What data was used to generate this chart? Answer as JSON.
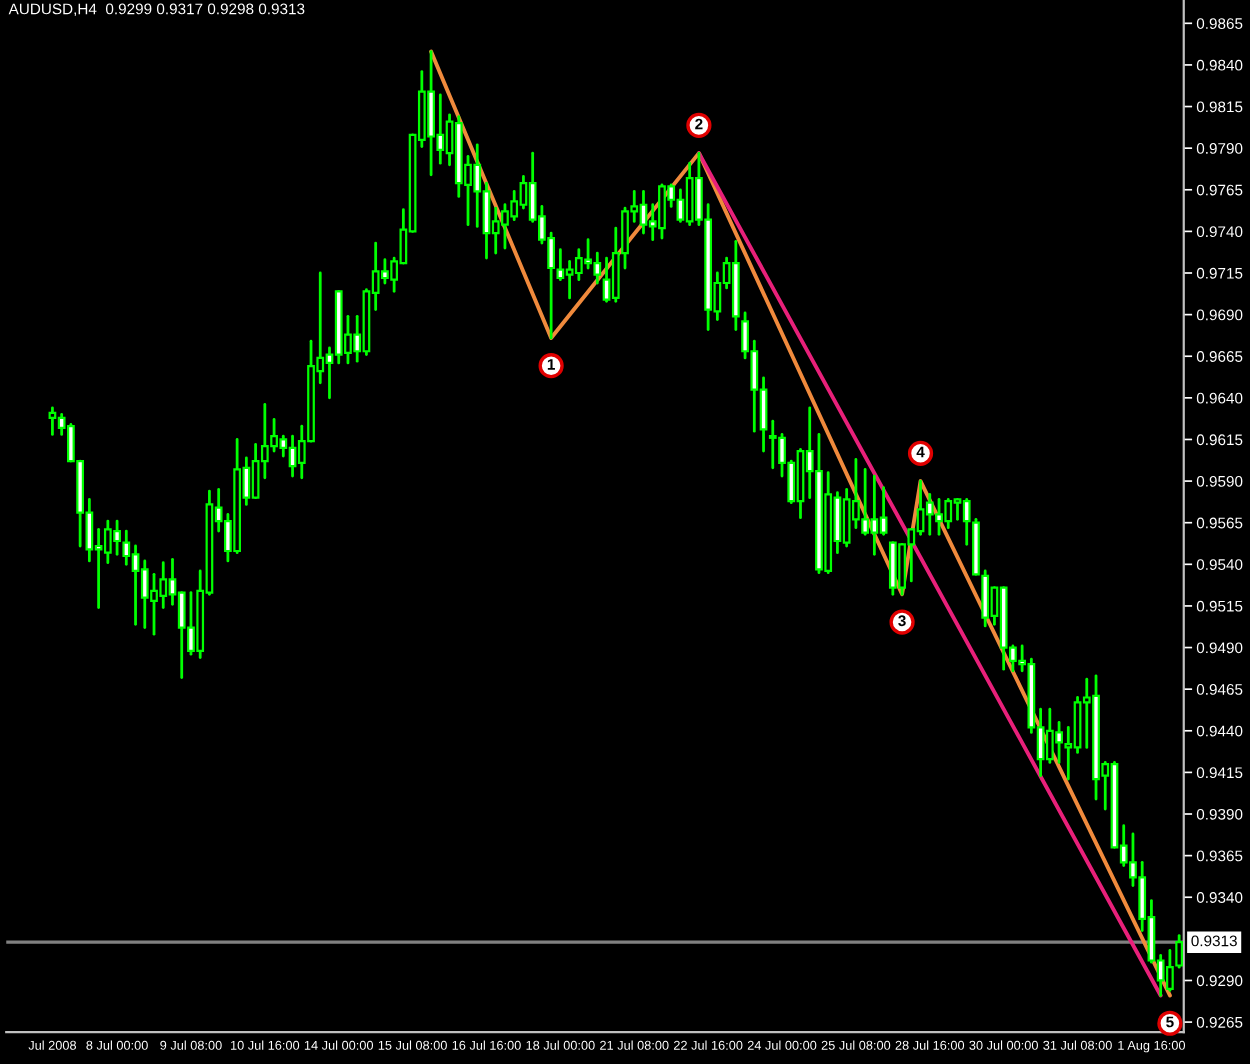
{
  "chart_data": {
    "type": "candlestick",
    "title": "AUDUSD,H4  0.9299 0.9317 0.9298 0.9313",
    "categories": [
      "Jul 2008",
      null,
      null,
      null,
      null,
      null,
      null,
      "8 Jul 00:00",
      null,
      null,
      null,
      null,
      null,
      null,
      null,
      "9 Jul 08:00",
      null,
      null,
      null,
      null,
      null,
      null,
      null,
      "10 Jul 16:00",
      null,
      null,
      null,
      null,
      null,
      null,
      null,
      "14 Jul 00:00",
      null,
      null,
      null,
      null,
      null,
      null,
      null,
      "15 Jul 08:00",
      null,
      null,
      null,
      null,
      null,
      null,
      null,
      "16 Jul 16:00",
      null,
      null,
      null,
      null,
      null,
      null,
      null,
      "18 Jul 00:00",
      null,
      null,
      null,
      null,
      null,
      null,
      null,
      "21 Jul 08:00",
      null,
      null,
      null,
      null,
      null,
      null,
      null,
      "22 Jul 16:00",
      null,
      null,
      null,
      null,
      null,
      null,
      null,
      "24 Jul 00:00",
      null,
      null,
      null,
      null,
      null,
      null,
      null,
      "25 Jul 08:00",
      null,
      null,
      null,
      null,
      null,
      null,
      null,
      "28 Jul 16:00",
      null,
      null,
      null,
      null,
      null,
      null,
      null,
      "30 Jul 00:00",
      null,
      null,
      null,
      null,
      null,
      null,
      null,
      "31 Jul 08:00",
      null,
      null,
      null,
      null,
      null,
      null,
      null,
      "1 Aug 16:00",
      null,
      null,
      null
    ],
    "color": "#00ff00",
    "ohlc": [
      [
        0.9628,
        0.9634,
        0.9618,
        0.9631
      ],
      [
        0.9628,
        0.963,
        0.9618,
        0.9622
      ],
      [
        0.9623,
        0.9624,
        0.9602,
        0.9602
      ],
      [
        0.9602,
        0.9602,
        0.9551,
        0.9571
      ],
      [
        0.9571,
        0.9579,
        0.9542,
        0.9549
      ],
      [
        0.9551,
        0.9561,
        0.9514,
        0.9549
      ],
      [
        0.9547,
        0.9566,
        0.9541,
        0.9561
      ],
      [
        0.956,
        0.9566,
        0.9546,
        0.9554
      ],
      [
        0.9553,
        0.956,
        0.954,
        0.9545
      ],
      [
        0.9546,
        0.9551,
        0.9504,
        0.9536
      ],
      [
        0.9537,
        0.9542,
        0.9502,
        0.952
      ],
      [
        0.9518,
        0.9534,
        0.9498,
        0.9524
      ],
      [
        0.9521,
        0.9541,
        0.9514,
        0.9531
      ],
      [
        0.9531,
        0.9543,
        0.9516,
        0.9522
      ],
      [
        0.9523,
        0.9523,
        0.9472,
        0.9502
      ],
      [
        0.9502,
        0.9523,
        0.9486,
        0.9488
      ],
      [
        0.9488,
        0.9536,
        0.9484,
        0.9524
      ],
      [
        0.9523,
        0.9584,
        0.9522,
        0.9576
      ],
      [
        0.9574,
        0.9585,
        0.956,
        0.9566
      ],
      [
        0.9566,
        0.957,
        0.9542,
        0.9548
      ],
      [
        0.9548,
        0.9615,
        0.9547,
        0.9597
      ],
      [
        0.9598,
        0.9604,
        0.9576,
        0.958
      ],
      [
        0.958,
        0.9612,
        0.958,
        0.9602
      ],
      [
        0.9602,
        0.9636,
        0.9592,
        0.9611
      ],
      [
        0.9611,
        0.9627,
        0.9608,
        0.9617
      ],
      [
        0.9615,
        0.9617,
        0.9605,
        0.961
      ],
      [
        0.961,
        0.9617,
        0.9593,
        0.9599
      ],
      [
        0.9601,
        0.9623,
        0.9592,
        0.9614
      ],
      [
        0.9614,
        0.9674,
        0.9614,
        0.9659
      ],
      [
        0.9656,
        0.9715,
        0.9649,
        0.9664
      ],
      [
        0.9666,
        0.967,
        0.964,
        0.9661
      ],
      [
        0.9704,
        0.9704,
        0.9661,
        0.9666
      ],
      [
        0.9667,
        0.9689,
        0.9661,
        0.9678
      ],
      [
        0.9678,
        0.9689,
        0.9662,
        0.9668
      ],
      [
        0.9668,
        0.9705,
        0.9666,
        0.9704
      ],
      [
        0.9703,
        0.9733,
        0.9693,
        0.9716
      ],
      [
        0.9716,
        0.9723,
        0.9709,
        0.9712
      ],
      [
        0.9711,
        0.9724,
        0.9704,
        0.9722
      ],
      [
        0.9721,
        0.9753,
        0.9721,
        0.9741
      ],
      [
        0.974,
        0.9798,
        0.974,
        0.9798
      ],
      [
        0.9795,
        0.9836,
        0.9791,
        0.9824
      ],
      [
        0.9824,
        0.9848,
        0.9774,
        0.9797
      ],
      [
        0.9798,
        0.9822,
        0.9781,
        0.9789
      ],
      [
        0.9787,
        0.981,
        0.978,
        0.9806
      ],
      [
        0.9805,
        0.9809,
        0.9761,
        0.9769
      ],
      [
        0.9768,
        0.9785,
        0.9744,
        0.978
      ],
      [
        0.978,
        0.9792,
        0.9743,
        0.9764
      ],
      [
        0.9764,
        0.9769,
        0.9724,
        0.9739
      ],
      [
        0.9739,
        0.9754,
        0.9727,
        0.9746
      ],
      [
        0.9744,
        0.9756,
        0.973,
        0.9752
      ],
      [
        0.9749,
        0.9764,
        0.9747,
        0.9758
      ],
      [
        0.9756,
        0.9773,
        0.9754,
        0.9769
      ],
      [
        0.9769,
        0.9787,
        0.9746,
        0.9747
      ],
      [
        0.9749,
        0.9755,
        0.9733,
        0.9735
      ],
      [
        0.9736,
        0.9739,
        0.9676,
        0.9718
      ],
      [
        0.9717,
        0.9729,
        0.9711,
        0.9712
      ],
      [
        0.9714,
        0.9722,
        0.97,
        0.9717
      ],
      [
        0.9715,
        0.9729,
        0.9711,
        0.9724
      ],
      [
        0.9723,
        0.9735,
        0.9718,
        0.9721
      ],
      [
        0.9721,
        0.9727,
        0.9709,
        0.9714
      ],
      [
        0.9711,
        0.9724,
        0.9698,
        0.9699
      ],
      [
        0.97,
        0.9742,
        0.9698,
        0.9727
      ],
      [
        0.9727,
        0.9754,
        0.9718,
        0.9752
      ],
      [
        0.9752,
        0.9764,
        0.9746,
        0.9755
      ],
      [
        0.9756,
        0.9764,
        0.9739,
        0.9744
      ],
      [
        0.9746,
        0.9756,
        0.9735,
        0.9743
      ],
      [
        0.9742,
        0.9768,
        0.9736,
        0.9767
      ],
      [
        0.9767,
        0.9768,
        0.9755,
        0.9759
      ],
      [
        0.9759,
        0.9765,
        0.9746,
        0.9747
      ],
      [
        0.9746,
        0.9781,
        0.9744,
        0.9772
      ],
      [
        0.9772,
        0.9787,
        0.9744,
        0.9747
      ],
      [
        0.9747,
        0.9756,
        0.9681,
        0.9693
      ],
      [
        0.9692,
        0.9715,
        0.9687,
        0.9709
      ],
      [
        0.9709,
        0.9724,
        0.9706,
        0.9721
      ],
      [
        0.9721,
        0.9734,
        0.9681,
        0.9689
      ],
      [
        0.9686,
        0.9691,
        0.9664,
        0.9668
      ],
      [
        0.9668,
        0.9674,
        0.962,
        0.9645
      ],
      [
        0.9645,
        0.9652,
        0.9608,
        0.9621
      ],
      [
        0.9617,
        0.9626,
        0.9598,
        0.9616
      ],
      [
        0.9616,
        0.9618,
        0.9593,
        0.9601
      ],
      [
        0.9601,
        0.9602,
        0.9577,
        0.9578
      ],
      [
        0.9578,
        0.9609,
        0.9568,
        0.9608
      ],
      [
        0.9608,
        0.9634,
        0.958,
        0.9596
      ],
      [
        0.9596,
        0.9618,
        0.9535,
        0.9537
      ],
      [
        0.9536,
        0.9595,
        0.9535,
        0.9582
      ],
      [
        0.958,
        0.9583,
        0.9547,
        0.9554
      ],
      [
        0.9553,
        0.9585,
        0.9551,
        0.9579
      ],
      [
        0.9567,
        0.9603,
        0.9562,
        0.9578
      ],
      [
        0.9567,
        0.9597,
        0.9558,
        0.9559
      ],
      [
        0.9567,
        0.9593,
        0.9546,
        0.9559
      ],
      [
        0.9568,
        0.9586,
        0.9558,
        0.9559
      ],
      [
        0.9553,
        0.9553,
        0.9522,
        0.9526
      ],
      [
        0.9526,
        0.9552,
        0.9522,
        0.9552
      ],
      [
        0.9552,
        0.9561,
        0.953,
        0.9561
      ],
      [
        0.956,
        0.959,
        0.9558,
        0.9573
      ],
      [
        0.9577,
        0.9582,
        0.9558,
        0.957
      ],
      [
        0.957,
        0.9579,
        0.9558,
        0.9566
      ],
      [
        0.9566,
        0.9579,
        0.9562,
        0.9578
      ],
      [
        0.9577,
        0.9579,
        0.9567,
        0.9579
      ],
      [
        0.9578,
        0.9579,
        0.9552,
        0.9566
      ],
      [
        0.9565,
        0.9567,
        0.9534,
        0.9534
      ],
      [
        0.9533,
        0.9536,
        0.9503,
        0.9508
      ],
      [
        0.9509,
        0.9526,
        0.9504,
        0.9526
      ],
      [
        0.9526,
        0.9526,
        0.9477,
        0.949
      ],
      [
        0.949,
        0.9491,
        0.9476,
        0.9482
      ],
      [
        0.9482,
        0.9491,
        0.9476,
        0.948
      ],
      [
        0.948,
        0.9483,
        0.9439,
        0.9442
      ],
      [
        0.9442,
        0.9453,
        0.9413,
        0.9423
      ],
      [
        0.9423,
        0.9453,
        0.9421,
        0.944
      ],
      [
        0.9439,
        0.9445,
        0.9421,
        0.9433
      ],
      [
        0.943,
        0.9442,
        0.9411,
        0.9432
      ],
      [
        0.943,
        0.946,
        0.9427,
        0.9457
      ],
      [
        0.9457,
        0.9471,
        0.943,
        0.946
      ],
      [
        0.9461,
        0.9473,
        0.9399,
        0.9411
      ],
      [
        0.9413,
        0.9421,
        0.9393,
        0.942
      ],
      [
        0.942,
        0.9421,
        0.937,
        0.937
      ],
      [
        0.9371,
        0.9383,
        0.9359,
        0.9361
      ],
      [
        0.9361,
        0.9378,
        0.9347,
        0.9352
      ],
      [
        0.9352,
        0.9361,
        0.932,
        0.9327
      ],
      [
        0.9328,
        0.9338,
        0.9301,
        0.9302
      ],
      [
        0.9302,
        0.9305,
        0.9281,
        0.929
      ],
      [
        0.9285,
        0.9308,
        0.9284,
        0.9298
      ],
      [
        0.9299,
        0.9317,
        0.9298,
        0.9313
      ]
    ],
    "series": [
      {
        "type": "line",
        "color": "#f08a3c",
        "values": [
          null,
          null,
          null,
          null,
          null,
          null,
          null,
          null,
          null,
          null,
          null,
          null,
          null,
          null,
          null,
          null,
          null,
          null,
          null,
          null,
          null,
          null,
          null,
          null,
          null,
          null,
          null,
          null,
          null,
          null,
          null,
          null,
          null,
          null,
          null,
          null,
          null,
          null,
          null,
          null,
          null,
          0.9848,
          null,
          null,
          null,
          null,
          null,
          null,
          null,
          null,
          null,
          null,
          null,
          null,
          0.9676,
          null,
          null,
          null,
          null,
          null,
          null,
          null,
          null,
          null,
          null,
          null,
          null,
          null,
          null,
          null,
          0.9787,
          null,
          null,
          null,
          null,
          null,
          null,
          null,
          null,
          null,
          null,
          null,
          null,
          null,
          null,
          null,
          null,
          null,
          null,
          null,
          null,
          null,
          0.9522,
          null,
          0.959,
          null,
          null,
          null,
          null,
          null,
          null,
          null,
          null,
          null,
          null,
          null,
          null,
          null,
          null,
          null,
          null,
          null,
          null,
          null,
          null,
          null,
          null,
          null,
          null,
          null,
          null,
          0.9281,
          null
        ]
      },
      {
        "type": "line",
        "color": "#e8207a",
        "values": [
          null,
          null,
          null,
          null,
          null,
          null,
          null,
          null,
          null,
          null,
          null,
          null,
          null,
          null,
          null,
          null,
          null,
          null,
          null,
          null,
          null,
          null,
          null,
          null,
          null,
          null,
          null,
          null,
          null,
          null,
          null,
          null,
          null,
          null,
          null,
          null,
          null,
          null,
          null,
          null,
          null,
          null,
          null,
          null,
          null,
          null,
          null,
          null,
          null,
          null,
          null,
          null,
          null,
          null,
          null,
          null,
          null,
          null,
          null,
          null,
          null,
          null,
          null,
          null,
          null,
          null,
          null,
          null,
          null,
          null,
          0.9787,
          null,
          null,
          null,
          null,
          null,
          null,
          null,
          null,
          null,
          null,
          null,
          null,
          null,
          null,
          null,
          null,
          null,
          null,
          null,
          null,
          null,
          null,
          null,
          null,
          null,
          null,
          null,
          null,
          null,
          null,
          null,
          null,
          null,
          null,
          null,
          null,
          null,
          null,
          null,
          null,
          null,
          null,
          null,
          null,
          null,
          null,
          null,
          null,
          null,
          0.9281,
          null,
          null
        ]
      }
    ],
    "annotations": [
      {
        "text": "1",
        "y": 0.9676
      },
      {
        "text": "2",
        "y": 0.9787
      },
      {
        "text": "3",
        "y": 0.9522
      },
      {
        "text": "4",
        "y": 0.959
      },
      {
        "text": "5",
        "y": 0.9281
      }
    ],
    "ylim": [
      0.9259,
      0.9879
    ],
    "yticks": [
      0.9865,
      {
        "value": 0.984,
        "label": "0.9840"
      },
      0.9815,
      {
        "value": 0.979,
        "label": "0.9790"
      },
      0.9765,
      {
        "value": 0.974,
        "label": "0.9740"
      },
      0.9715,
      {
        "value": 0.969,
        "label": "0.9690"
      },
      0.9665,
      {
        "value": 0.964,
        "label": "0.9640"
      },
      0.9615,
      {
        "value": 0.959,
        "label": "0.9590"
      },
      0.9565,
      {
        "value": 0.954,
        "label": "0.9540"
      },
      0.9515,
      {
        "value": 0.949,
        "label": "0.9490"
      },
      0.9465,
      {
        "value": 0.944,
        "label": "0.9440"
      },
      0.9415,
      {
        "value": 0.939,
        "label": "0.9390"
      },
      0.9365,
      {
        "value": 0.934,
        "label": "0.9340"
      },
      {
        "value": 0.929,
        "label": "0.9290"
      },
      0.9265
    ],
    "ref_lines": [
      {
        "axis": "y",
        "value": 0.9313,
        "label": "0.9313",
        "color": "#808080"
      }
    ]
  }
}
